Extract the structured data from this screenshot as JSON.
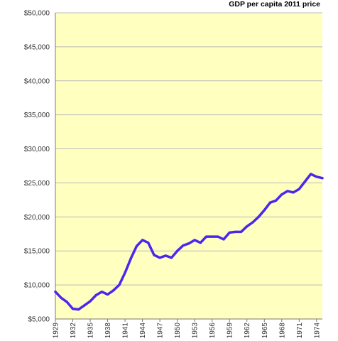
{
  "chart_data": {
    "type": "line",
    "title": "GDP per capita 2011 price",
    "xlabel": "",
    "ylabel": "",
    "xlim": [
      1929,
      1975
    ],
    "ylim": [
      5000,
      50000
    ],
    "grid": true,
    "y_ticks": [
      5000,
      10000,
      15000,
      20000,
      25000,
      30000,
      35000,
      40000,
      45000,
      50000
    ],
    "y_tick_labels": [
      "$5,000",
      "$10,000",
      "$15,000",
      "$20,000",
      "$25,000",
      "$30,000",
      "$35,000",
      "$40,000",
      "$45,000",
      "$50,000"
    ],
    "x_ticks": [
      1929,
      1932,
      1935,
      1938,
      1941,
      1944,
      1947,
      1950,
      1953,
      1956,
      1959,
      1962,
      1965,
      1968,
      1971,
      1974
    ],
    "x_tick_labels": [
      "1929",
      "1932",
      "1935",
      "1938",
      "1941",
      "1944",
      "1947",
      "1950",
      "1953",
      "1956",
      "1959",
      "1962",
      "1965",
      "1968",
      "1971",
      "1974"
    ],
    "colors": {
      "plot_background": "#ffffc0",
      "line": "#4b26f0",
      "grid": "#b9b9b9",
      "axis": "#7a7a7a"
    },
    "series": [
      {
        "x": [
          1929,
          1930,
          1931,
          1932,
          1933,
          1934,
          1935,
          1936,
          1937,
          1938,
          1939,
          1940,
          1941,
          1942,
          1943,
          1944,
          1945,
          1946,
          1947,
          1948,
          1949,
          1950,
          1951,
          1952,
          1953,
          1954,
          1955,
          1956,
          1957,
          1958,
          1959,
          1960,
          1961,
          1962,
          1963,
          1964,
          1965,
          1966,
          1967,
          1968,
          1969,
          1970,
          1971,
          1972,
          1973,
          1974,
          1975
        ],
        "values": [
          9000,
          8100,
          7500,
          6500,
          6400,
          7000,
          7600,
          8500,
          9000,
          8600,
          9200,
          10000,
          11800,
          13900,
          15700,
          16600,
          16200,
          14400,
          14000,
          14300,
          14000,
          15000,
          15800,
          16100,
          16600,
          16200,
          17100,
          17100,
          17100,
          16700,
          17700,
          17800,
          17800,
          18600,
          19200,
          20000,
          21000,
          22100,
          22400,
          23300,
          23800,
          23600,
          24100,
          25200,
          26300,
          25900,
          25700
        ]
      }
    ]
  }
}
